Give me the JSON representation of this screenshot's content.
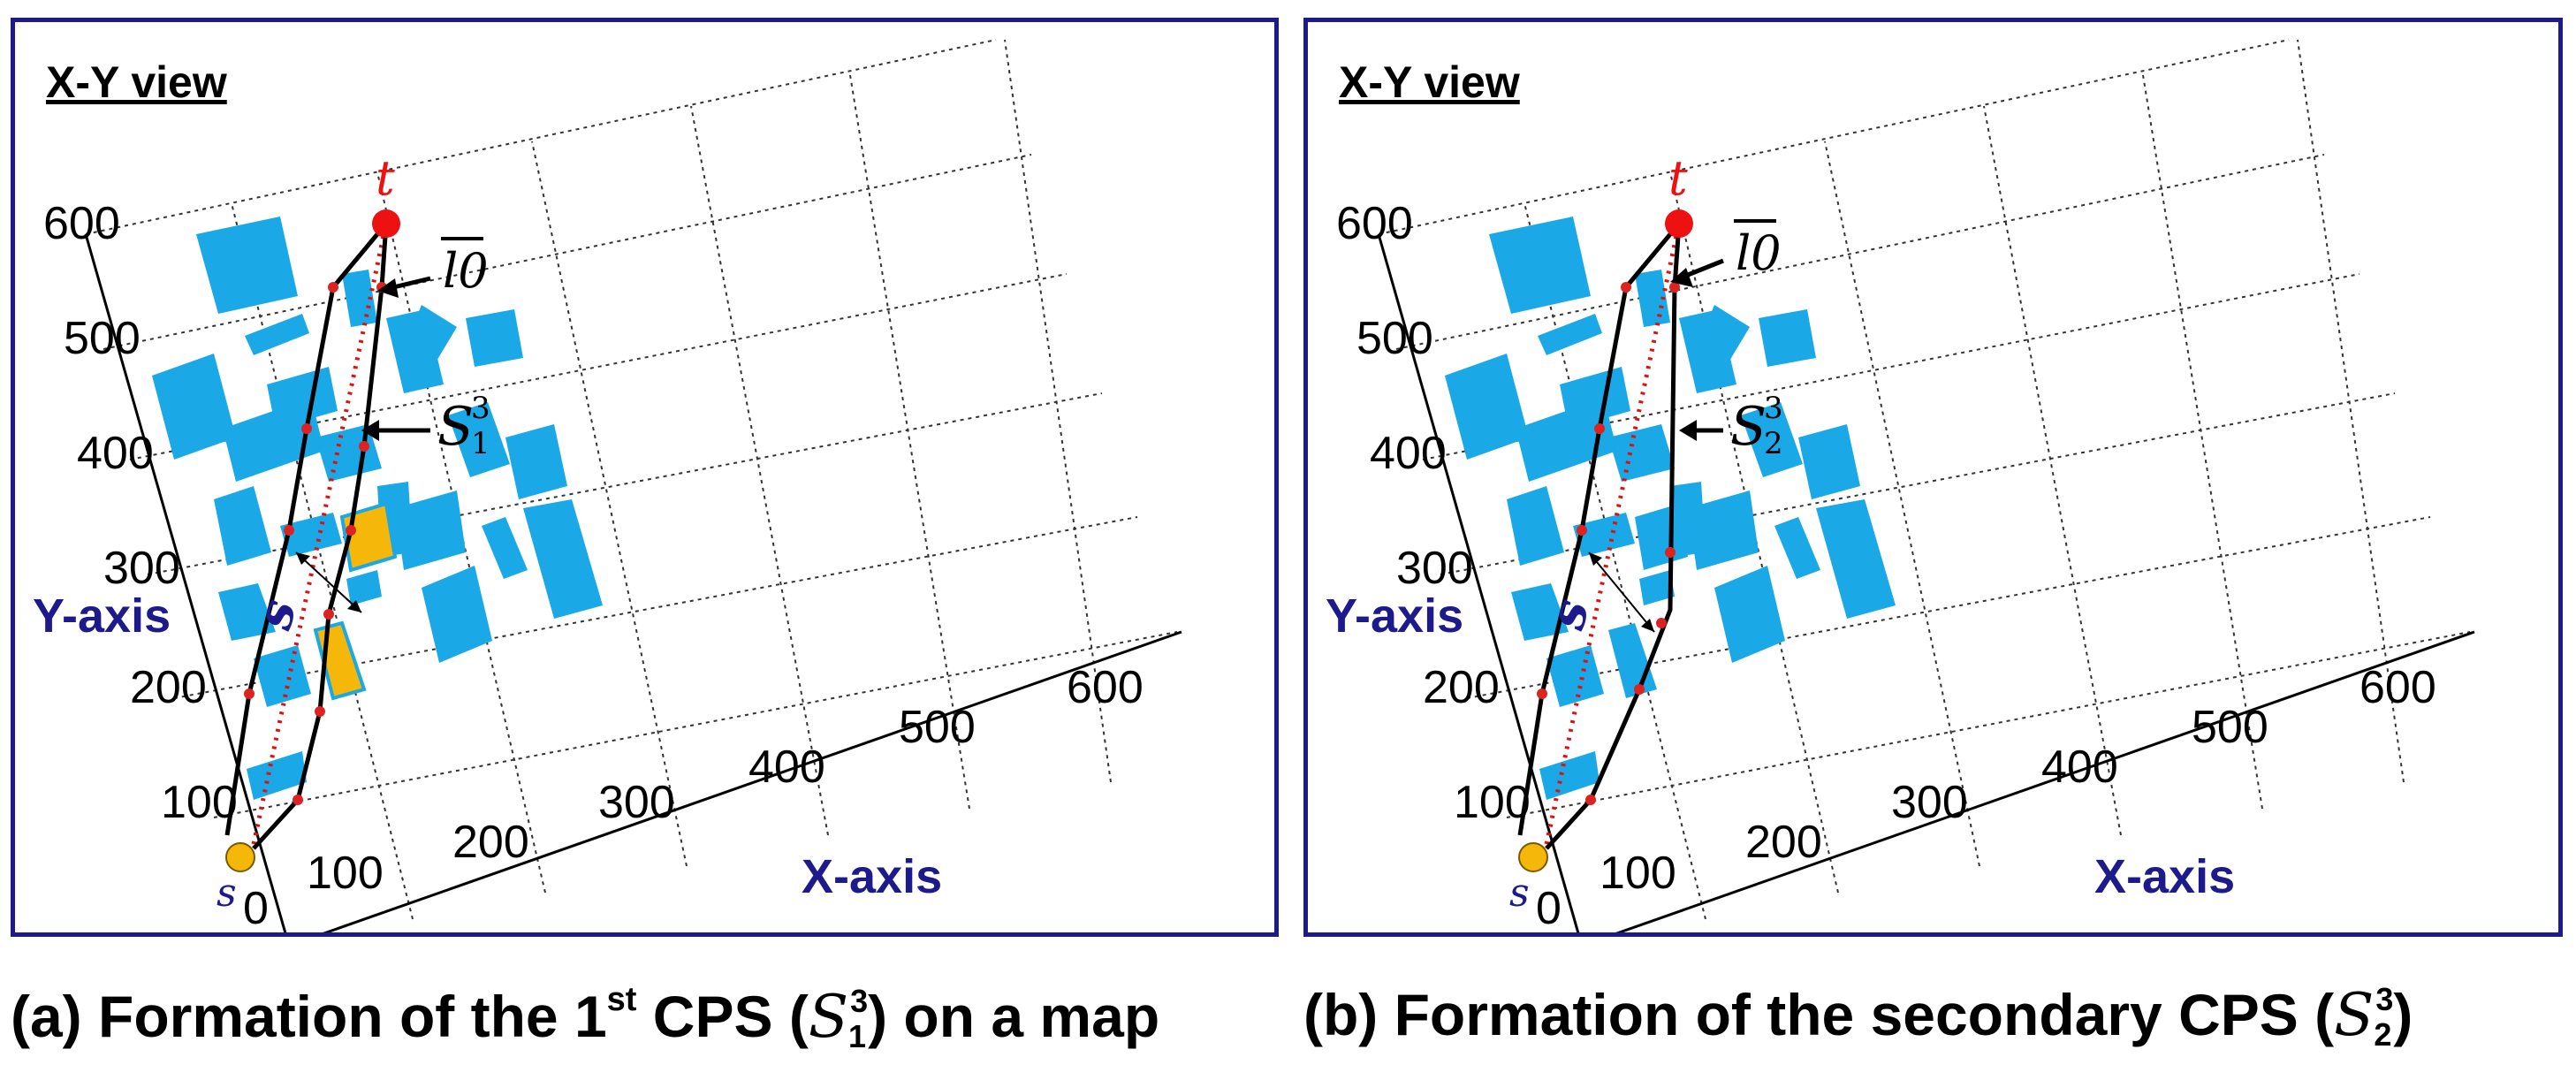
{
  "panel_a": {
    "view_title": "X-Y view",
    "x_axis_label": "X-axis",
    "y_axis_label": "Y-axis",
    "x_ticks": [
      "0",
      "100",
      "200",
      "300",
      "400",
      "500",
      "600"
    ],
    "y_ticks": [
      "100",
      "200",
      "300",
      "400",
      "500",
      "600"
    ],
    "source_label": "s",
    "target_label": "t",
    "line_label": "l0",
    "path_label": "S",
    "path_sub": "1",
    "path_sup": "3",
    "offset_label": "s",
    "caption_prefix": "(a) Formation of the 1",
    "caption_sup": "st",
    "caption_mid": " CPS (",
    "caption_s": "S",
    "caption_sub": "1",
    "caption_supn": "3",
    "caption_suffix": ") on a map"
  },
  "panel_b": {
    "view_title": "X-Y view",
    "x_axis_label": "X-axis",
    "y_axis_label": "Y-axis",
    "x_ticks": [
      "0",
      "100",
      "200",
      "300",
      "400",
      "500",
      "600"
    ],
    "y_ticks": [
      "100",
      "200",
      "300",
      "400",
      "500",
      "600"
    ],
    "source_label": "s",
    "target_label": "t",
    "line_label": "l0",
    "path_label": "S",
    "path_sub": "2",
    "path_sup": "3",
    "offset_label": "s",
    "caption_prefix": "(b) Formation of the secondary CPS (",
    "caption_s": "S",
    "caption_sub": "2",
    "caption_supn": "3",
    "caption_suffix": ")"
  },
  "colors": {
    "frame": "#1d1a8c",
    "obstacle": "#1aa8e6",
    "highlight_obstacle": "#f5b70a",
    "target": "#ee1111",
    "source": "#f5b70a",
    "guide_line": "#dd1111",
    "waypoint": "#dd2222",
    "label_blue": "#1d1a8c"
  }
}
